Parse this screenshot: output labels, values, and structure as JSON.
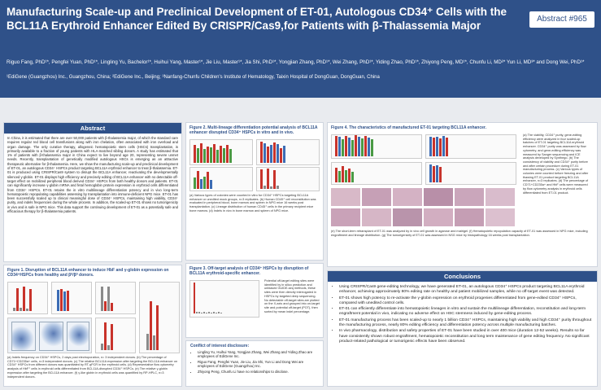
{
  "header": {
    "title": "Manufacturing Scale-up and Preclinical Development of ET-01, Autologous CD34⁺ Cells with the BCL11A Erythroid Enhancer Edited By CRISPR/Cas9,for Patients with β-Thalassemia Major",
    "abstract_no": "Abstract #965",
    "authors": "Riguo Fang, PhD¹*, Pengfei Yuan, PhD¹*, Lingling Yu, Bachelor¹*, Huihui Yang, Master¹*, Jie Liu, Master¹*, Jia Shi, PhD¹*, Yongjian Zhang, PhD¹*, Wei Zhang, PhD¹*, Yiding Zhao, PhD¹*, Zhiyong Peng, MD¹*, Chunfu Li, MD²* Yun Li, MD³* and Dong Wei, PhD¹*",
    "affiliations": "¹EdiGene (Guangzhou) Inc., Guangzhou, China; ²EdiGene Inc., Beijing; ³Nanfang-Chunfu Children's Institute of Hematology, Taixin Hospital of DongGuan, DongGuan, China"
  },
  "abstract": {
    "heading": "Abstract",
    "body": "In China, it is estimated that there are over 50,000 patients with β-thalassemia major, of which the standard care requires regular red blood cell transfusions along with iron chelation, often associated with iron overload and organ damage. The only curative therapy, allogeneic hematopoietic stem cells (HSCs) transplantation, is primarily available to a fraction of young patients with HLA-matched sibling donors. A study has estimated that 1% of patients with β-thalassemia major in China expect to live beyond age 20, representing severe unmet needs. Recently, transplantation of genetically modified autologous HSCs is emerging as an attractive therapeutic alternative for β-thalassemia. Here, we show the manufacturing scale-up and preclinical development of ET-01, an autologous CD34⁺ HSPCs product targeting BCL11A erythroid enhancer to treat β-thalassemia. ET-01 is produced using CRISPR/Cas9 system to disrupt the BCL11A enhancer, reactivating the developmentally silenced γ-globin. ET-01 displays high efficiency and precisely editing of BCL11A enhancer with no detectable off-target effect on mobilized peripheral blood derived CD34⁺ HSPCs from both healthy donors and patients. ET-01 can significantly increase γ-globin mRNA and fetal hemoglobin protein expression in erythroid cells differentiated from CD34⁺ HSPCs. ET-01 retains the in vitro multilineage differentiation potency and in vivo long-term hematopoietic repopulating capabilities assessing by transplantation into immune-deficient NPG mice. ET-01 has been successfully scaled up to clinical meaningful dose of CD34⁺ HSPCs, maintaining high viability, CD34⁺ purity, and indels frequencies during the whole process. In addition, the scaled-up ET-01 shows no tumorigenicity in vivo and is safe in NPG mice. This data support the continuing development of ET-01 as a potentially safe and efficacious therapy for β-thalassemia patients."
  },
  "figure1": {
    "title": "Figure 1. Disruption of BCL11A enhancer to induce HbF and γ-globin expression on CD34⁺HSPCs from healthy and β⁰/β⁰ donors.",
    "caption": "(a) Indels frequency on CD34⁺ HSPCs, 2 days post electroporation, n= 3 independent donors. (b) The percentage of CD71+CD235a+ cells, n=3 independent donors. (c) The relative BCL11A expression after targeting the BCL11A enhancer on CD34⁺ HSPCs from different donors was quantitated by RT-qPCR in the erythroid cells. (d) Representative flow cytometry analysis of HbF⁺ cells in erythroid cells differentiated from BCL11A-disrupted CD34⁺ HSPCs. (e) The relative γ-globin expression after targeting the BCL11A enhancer. (f) γ-like globin in erythroid cells was quantified by RP-HPLC, n=3 independent donors."
  },
  "figure2": {
    "title": "Figure 2. Multi-lineage differentiation potential analysis of BCL11A enhancer disrupted CD34⁺ HSPCs in vitro and in vivo.",
    "caption": "(a) Various types of colonies were counted in vitro for CD34⁺ HSPCs targeting BCL11A enhancer or unedited mock groups, n=3 replicates. (b) Human CD45⁺ cell reconstitution was evaluated in peripheral blood, bone marrow and spleen in NPG mice 16 weeks post transplantation. (c) Lineage distribution of human CD45⁺ cells in the primary recipient mice bone marrow. (d) Indels in vivo in bone marrow and spleen of NPG mice."
  },
  "figure3": {
    "title": "Figure 3. Off-target analysis of CD34⁺ HSPCs by disruption of BCL11A erythroid-specific enhancer.",
    "caption": "Potential off-target editing sites were identified by in silico prediction and unbiased GUIDE-seq methods, these sites were then directly interrogated in HSPCs by targeted deep sequencing. No detectable off-target sites are plotted on the X-axis and grouped into on-target site and potential off-target (POT), then sorted by mean indel percentage."
  },
  "figure4": {
    "title": "Figure 4. The characteristics of manufactured ET-01 targeting BCL11A enhancer.",
    "caption_side": "(a) The viability, CD34⁺ purity, gene-editing efficiency were analyzed in four scaled-up batches of ET-01 targeting BCL11A erythroid enhancer. CD34⁺ purity was assessed by flow cytometry, and gene-editing efficiency was measured by Sanger sequencing and ICE analysis developed by Synthego. (b) The consistency of viability and CD34⁺ purity before and after certain procedure during ET-01 manufacturing process. (c) Various types of colonies were counted before freezing and after thawing ET-01 product targeting BCL11A enhancer, n=3 replicates. (d) The percentage of CD71+CD235a+ and HbF cells were measured by flow cytometry analysis in erythroid cells differentiated from ET-01 product.",
    "caption_bottom": "(e) The short-term retransplant of ET-01 was analyzed by in vivo cell growth in agarose and matrigel. (f) Hematopoietic repopulation capacity of ET-01 was assessed in NPG mice, including engraftment and lineage distribution. (g) The tumorigenicity of ET-01 was assessed in NSG mice by histopathology 16 weeks post transplantation."
  },
  "coi": {
    "heading": "Conflict of interest disclosure:",
    "items": [
      "Lingling Yu, Huihui Yang, Yongjian Zhang, Wei Zhang and Yiding Zhao are employees of EdiGene Inc.",
      "Riguo Fang, Pengfei Yuan, Jie Liu, Jia Shi, Yun Li and Dong Wei are employees of EdiGene (Guangzhou) Inc.",
      "Zhiyong Peng, Chunfu Li have no relationships to disclose."
    ]
  },
  "conclusions": {
    "heading": "Conclusions",
    "items": [
      "Using CRISPR/Cas9 gene-editing technology, we have generated ET-01, an autologous CD34⁺ HSPCs product targeting BCL11A erythroid enhancer, achieving approximately 80% editing rate on healthy and patient mobilized samples, while no off-target event was detected.",
      "ET-01 shows high potency to re-activate the γ-globin expression on erythroid progenies differentiated from gene-edited CD34⁺ HSPCs, compared with unedited control cells.",
      "ET-01 can efficiently differentiate into hematopoietic lineages in vitro and sustain the multilineage differentiation, reconstitution and long-term engraftment potential in vivo, indicating no adverse effect on HSC stemness induced by gene-editing process.",
      "ET-01 manufacturing process has been scaled-up to nearly 1 billion CD34⁺ HSPCs, maintaining high viability and high CD34⁺ purity throughout the manufacturing process, nearly 80% editing efficiency and differentiation potency across multiple manufacturing batches.",
      "In vivo pharmacology, distribution and safety properties of ET-01 have been studied in over 400 mice (duration 12-52 weeks). Results so far have consistently shown robust engraftment, hematopoietic reconstitution and long term maintenance of gene editing frequency. No significant product-related pathological or tumorigenic effects have been observed."
    ]
  },
  "colors": {
    "header_bg": "#2f5189",
    "band_bg": "#e9ebef",
    "bar_red": "#c8332b",
    "bar_green": "#4a9a44",
    "bar_blue": "#3c6cb4",
    "bar_grey": "#8a8a8a"
  }
}
